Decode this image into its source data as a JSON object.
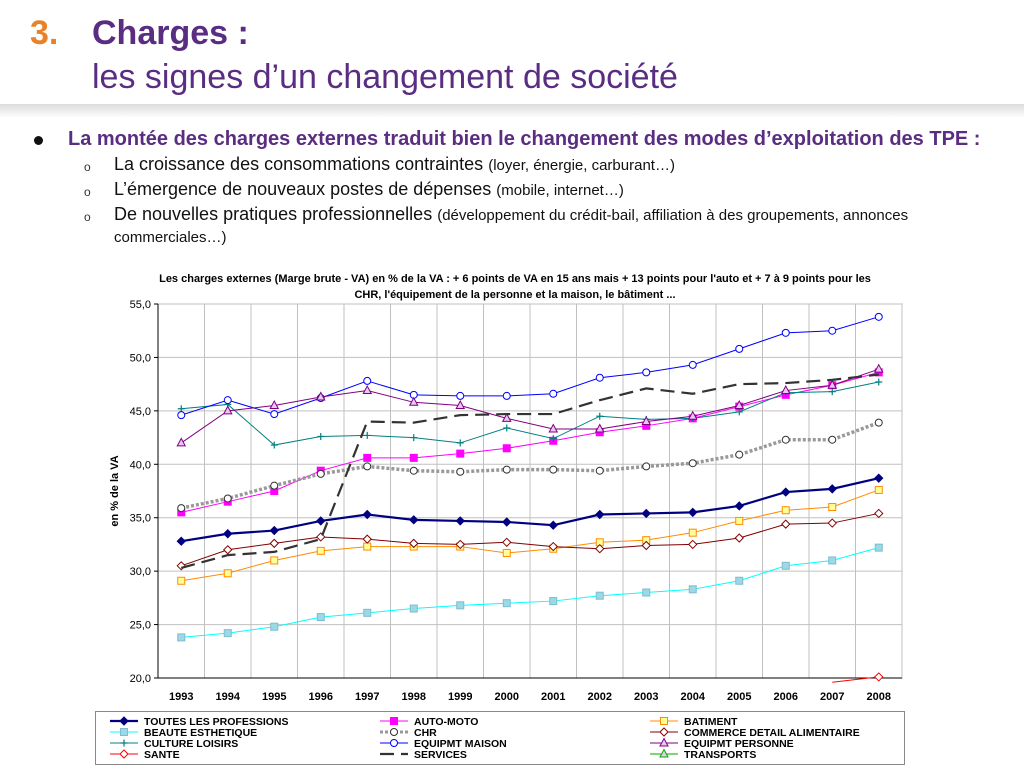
{
  "header": {
    "number": "3.",
    "title": "Charges :",
    "subtitle": "les signes d’un changement de société"
  },
  "bullets": {
    "main": "La montée des charges externes traduit bien le changement des modes d’exploitation des TPE :",
    "subs": [
      {
        "text": "La croissance des consommations contraintes",
        "detail": "(loyer, énergie, carburant…)"
      },
      {
        "text": "L’émergence de nouveaux postes de dépenses",
        "detail": "(mobile, internet…)"
      },
      {
        "text": "De nouvelles pratiques professionnelles",
        "detail": "(développement du crédit-bail, affiliation à des groupements, annonces commerciales…)"
      }
    ]
  },
  "chart_data": {
    "type": "line",
    "title": "Les charges externes (Marge brute - VA) en % de la VA : + 6 points de VA en 15 ans mais + 13 points pour l'auto et + 7 à 9 points pour les CHR, l'équipement de la personne et la maison,  le bâtiment ...",
    "xlabel": "",
    "ylabel": "en % de la VA",
    "ylim": [
      20,
      55
    ],
    "yticks": [
      "20,0",
      "25,0",
      "30,0",
      "35,0",
      "40,0",
      "45,0",
      "50,0",
      "55,0"
    ],
    "x": [
      "1993",
      "1994",
      "1995",
      "1996",
      "1997",
      "1998",
      "1999",
      "2000",
      "2001",
      "2002",
      "2003",
      "2004",
      "2005",
      "2006",
      "2007",
      "2008"
    ],
    "grid": true,
    "legend": "bottom",
    "series": [
      {
        "name": "TOUTES LES PROFESSIONS",
        "color": "#000080",
        "marker": "diamond",
        "width": 2.2,
        "values": [
          32.8,
          33.5,
          33.8,
          34.7,
          35.3,
          34.8,
          34.7,
          34.6,
          34.3,
          35.3,
          35.4,
          35.5,
          36.1,
          37.4,
          37.7,
          38.7
        ]
      },
      {
        "name": "AUTO-MOTO",
        "color": "#ff00ff",
        "marker": "square-filled",
        "width": 1,
        "values": [
          35.5,
          36.5,
          37.5,
          39.4,
          40.6,
          40.6,
          41.0,
          41.5,
          42.2,
          43.0,
          43.6,
          44.3,
          45.4,
          46.5,
          47.4,
          48.6
        ]
      },
      {
        "name": "BATIMENT",
        "color": "#ff8c00",
        "marker": "square-open",
        "width": 1,
        "values": [
          29.1,
          29.8,
          31.0,
          31.9,
          32.3,
          32.3,
          32.3,
          31.7,
          32.1,
          32.7,
          32.9,
          33.6,
          34.7,
          35.7,
          36.0,
          37.6
        ]
      },
      {
        "name": "BEAUTE ESTHETIQUE",
        "color": "#00ffff",
        "marker": "square-fill-light",
        "width": 1,
        "values": [
          23.8,
          24.2,
          24.8,
          25.7,
          26.1,
          26.5,
          26.8,
          27.0,
          27.2,
          27.7,
          28.0,
          28.3,
          29.1,
          30.5,
          31.0,
          32.2
        ]
      },
      {
        "name": "CHR",
        "color": "#999999",
        "marker": "circle-open-dark",
        "width": 3.5,
        "dash": "3,2",
        "values": [
          35.9,
          36.8,
          38.0,
          39.1,
          39.8,
          39.4,
          39.3,
          39.5,
          39.5,
          39.4,
          39.8,
          40.1,
          40.9,
          42.3,
          42.3,
          43.9
        ]
      },
      {
        "name": "COMMERCE DETAIL ALIMENTAIRE",
        "color": "#800000",
        "marker": "diamond-open",
        "width": 1,
        "values": [
          30.5,
          32.0,
          32.6,
          33.2,
          33.0,
          32.6,
          32.5,
          32.7,
          32.3,
          32.1,
          32.4,
          32.5,
          33.1,
          34.4,
          34.5,
          35.4
        ]
      },
      {
        "name": "CULTURE LOISIRS",
        "color": "#008080",
        "marker": "plus",
        "width": 1,
        "values": [
          45.2,
          45.6,
          41.8,
          42.6,
          42.7,
          42.5,
          42.0,
          43.4,
          42.4,
          44.5,
          44.2,
          44.3,
          44.9,
          46.7,
          46.8,
          47.7
        ]
      },
      {
        "name": "EQUIPMT MAISON",
        "color": "#0000ff",
        "marker": "circle-open",
        "width": 1,
        "values": [
          44.6,
          46.0,
          44.7,
          46.2,
          47.8,
          46.5,
          46.4,
          46.4,
          46.6,
          48.1,
          48.6,
          49.3,
          50.8,
          52.3,
          52.5,
          53.8
        ]
      },
      {
        "name": "EQUIPMT PERSONNE",
        "color": "#800080",
        "marker": "triangle-open",
        "width": 1,
        "values": [
          42.0,
          45.0,
          45.5,
          46.3,
          46.9,
          45.8,
          45.5,
          44.3,
          43.3,
          43.3,
          44.0,
          44.5,
          45.5,
          46.9,
          47.4,
          48.9
        ]
      },
      {
        "name": "SANTE",
        "color": "#ff0000",
        "marker": "diamond-open",
        "width": 1,
        "values": [
          null,
          null,
          null,
          null,
          null,
          null,
          null,
          null,
          null,
          null,
          null,
          null,
          null,
          null,
          19.6,
          20.1
        ]
      },
      {
        "name": "SERVICES",
        "color": "#333333",
        "marker": "none",
        "width": 2.2,
        "dash": "14,7",
        "values": [
          30.3,
          31.5,
          31.8,
          33.0,
          44.0,
          43.9,
          44.6,
          44.7,
          44.7,
          46.0,
          47.1,
          46.6,
          47.5,
          47.6,
          47.9,
          48.4
        ]
      },
      {
        "name": "TRANSPORTS",
        "color": "#00aa00",
        "marker": "triangle-open",
        "width": 1,
        "values": [
          null,
          null,
          null,
          null,
          null,
          null,
          null,
          null,
          null,
          null,
          null,
          null,
          null,
          null,
          null,
          null
        ]
      }
    ]
  }
}
